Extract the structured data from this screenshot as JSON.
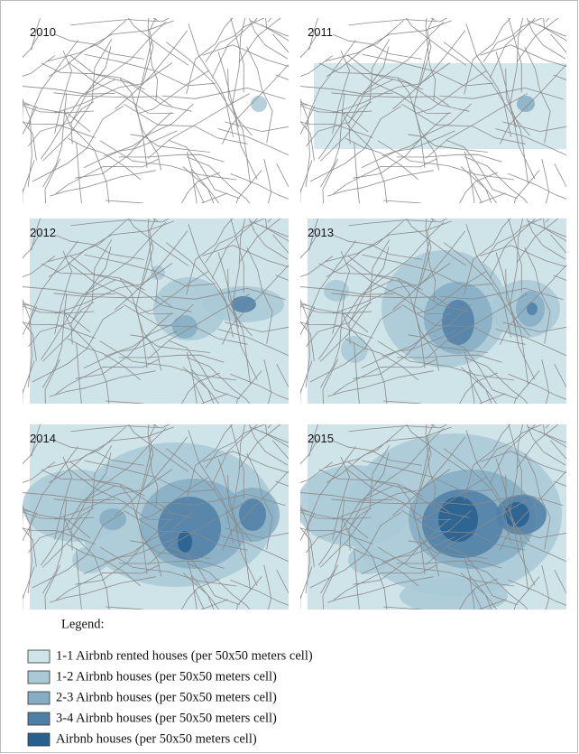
{
  "panels": [
    {
      "label": "2010"
    },
    {
      "label": "2011"
    },
    {
      "label": "2012"
    },
    {
      "label": "2013"
    },
    {
      "label": "2014"
    },
    {
      "label": "2015"
    }
  ],
  "legend": {
    "title": "Legend:",
    "items": [
      {
        "label": "1-1  Airbnb rented houses (per 50x50 meters cell)",
        "color": "#cfe4e9"
      },
      {
        "label": "1-2  Airbnb houses (per 50x50 meters cell)",
        "color": "#a9c9d6"
      },
      {
        "label": "2-3  Airbnb houses (per 50x50 meters cell)",
        "color": "#86adc3"
      },
      {
        "label": "3-4 Airbnb houses (per 50x50 meters cell)",
        "color": "#4f7fa6"
      },
      {
        "label": "Airbnb houses (per 50x50 meters cell)",
        "color": "#275f8e"
      }
    ]
  }
}
